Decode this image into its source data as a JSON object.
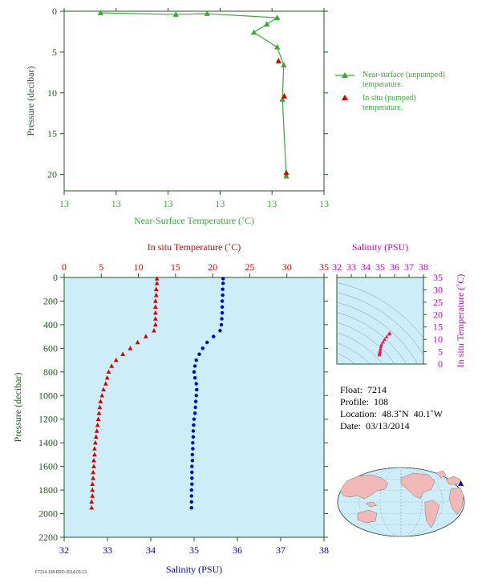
{
  "colors": {
    "green": "#33aa33",
    "red": "#dd0000",
    "blue": "#0000cc",
    "magenta": "#cc00cc",
    "frame": "#225522",
    "bg": "#cdeef8",
    "land": "#f2b8b8",
    "ocean": "#cdeef8"
  },
  "chart_data": [
    {
      "type": "line",
      "id": "near-surface",
      "xlabel": "Near-Surface Temperature (˚C)",
      "ylabel": "Pressure (decibar)",
      "xticks": [
        "13",
        "13",
        "13",
        "13",
        "13",
        "13"
      ],
      "yticks": [
        0,
        5,
        10,
        15,
        20
      ],
      "ylim": [
        0,
        22
      ],
      "series": [
        {
          "name": "Near-surface (unpumped) temperature.",
          "x": [
            0.14,
            0.43,
            0.55,
            0.82,
            0.78,
            0.73,
            0.82,
            0.845,
            0.84,
            0.855
          ],
          "y": [
            0.2,
            0.4,
            0.3,
            0.8,
            1.6,
            2.6,
            4.4,
            6.6,
            10.8,
            20.2
          ]
        },
        {
          "name": "In situ (pumped) temperature.",
          "x": [
            0.825,
            0.847,
            0.855
          ],
          "y": [
            6.1,
            10.4,
            19.8
          ]
        }
      ],
      "legend": "right"
    },
    {
      "type": "scatter",
      "id": "profile",
      "ylabel": "Pressure (decibar)",
      "yticks": [
        0,
        200,
        400,
        600,
        800,
        1000,
        1200,
        1400,
        1600,
        1800,
        2000,
        2200
      ],
      "ylim": [
        0,
        2200
      ],
      "x_top": {
        "label": "In situ Temperature (˚C)",
        "ticks": [
          0,
          5,
          10,
          15,
          20,
          25,
          30,
          35
        ],
        "lim": [
          0,
          35
        ]
      },
      "x_bottom": {
        "label": "Salinity (PSU)",
        "ticks": [
          32,
          33,
          34,
          35,
          36,
          37,
          38
        ],
        "lim": [
          32,
          38
        ]
      },
      "temperature": {
        "p": [
          10,
          50,
          100,
          150,
          200,
          250,
          300,
          350,
          400,
          450,
          500,
          550,
          600,
          650,
          700,
          750,
          800,
          850,
          900,
          950,
          1000,
          1050,
          1100,
          1150,
          1200,
          1250,
          1300,
          1350,
          1400,
          1450,
          1500,
          1550,
          1600,
          1650,
          1700,
          1750,
          1800,
          1850,
          1900,
          1950
        ],
        "t": [
          12.5,
          12.5,
          12.4,
          12.4,
          12.3,
          12.3,
          12.3,
          12.3,
          12.3,
          12.1,
          11.0,
          9.9,
          8.9,
          7.9,
          7.0,
          6.4,
          6.0,
          5.8,
          5.6,
          5.3,
          5.1,
          4.9,
          4.8,
          4.7,
          4.6,
          4.5,
          4.4,
          4.3,
          4.2,
          4.1,
          4.1,
          4.0,
          4.0,
          3.9,
          3.9,
          3.8,
          3.8,
          3.8,
          3.7,
          3.7
        ]
      },
      "salinity": {
        "p": [
          10,
          50,
          100,
          150,
          200,
          250,
          300,
          350,
          400,
          450,
          500,
          550,
          600,
          650,
          700,
          750,
          800,
          850,
          900,
          950,
          1000,
          1050,
          1100,
          1150,
          1200,
          1250,
          1300,
          1350,
          1400,
          1450,
          1500,
          1550,
          1600,
          1650,
          1700,
          1750,
          1800,
          1850,
          1900,
          1950
        ],
        "s": [
          35.67,
          35.67,
          35.66,
          35.66,
          35.65,
          35.65,
          35.65,
          35.64,
          35.63,
          35.6,
          35.45,
          35.3,
          35.2,
          35.12,
          35.05,
          35.02,
          35.0,
          35.02,
          35.05,
          35.06,
          35.05,
          35.04,
          35.03,
          35.02,
          35.0,
          34.99,
          34.98,
          34.98,
          34.97,
          34.97,
          34.96,
          34.96,
          34.95,
          34.95,
          34.95,
          34.95,
          34.94,
          34.94,
          34.94,
          34.94
        ]
      }
    },
    {
      "type": "scatter",
      "id": "ts-diagram",
      "x_top": {
        "label": "Salinity (PSU)",
        "ticks": [
          32,
          33,
          34,
          35,
          36,
          37,
          38
        ],
        "lim": [
          32,
          38
        ]
      },
      "y_right": {
        "label": "In situ Temperature (˚C)",
        "ticks": [
          0,
          5,
          10,
          15,
          20,
          25,
          30,
          35
        ],
        "lim": [
          0,
          35
        ]
      },
      "s": [
        35.67,
        35.65,
        35.6,
        35.45,
        35.3,
        35.2,
        35.1,
        35.05,
        35.02,
        35.0,
        34.98,
        34.96,
        34.95,
        34.94
      ],
      "t": [
        12.5,
        12.3,
        12.1,
        11.0,
        9.9,
        8.9,
        7.9,
        7.0,
        6.0,
        5.3,
        4.8,
        4.4,
        4.0,
        3.7
      ]
    }
  ],
  "info": {
    "float": "Float:  7214",
    "profile": "Profile:  108",
    "location": "Location:  48.3˚N  40.1˚W",
    "date": "Date:  03/13/2014"
  },
  "map": {
    "marker_lat": 48.3,
    "marker_lon": -40.1
  },
  "footer_code": "F7214-108-PRO-2014-03-13"
}
